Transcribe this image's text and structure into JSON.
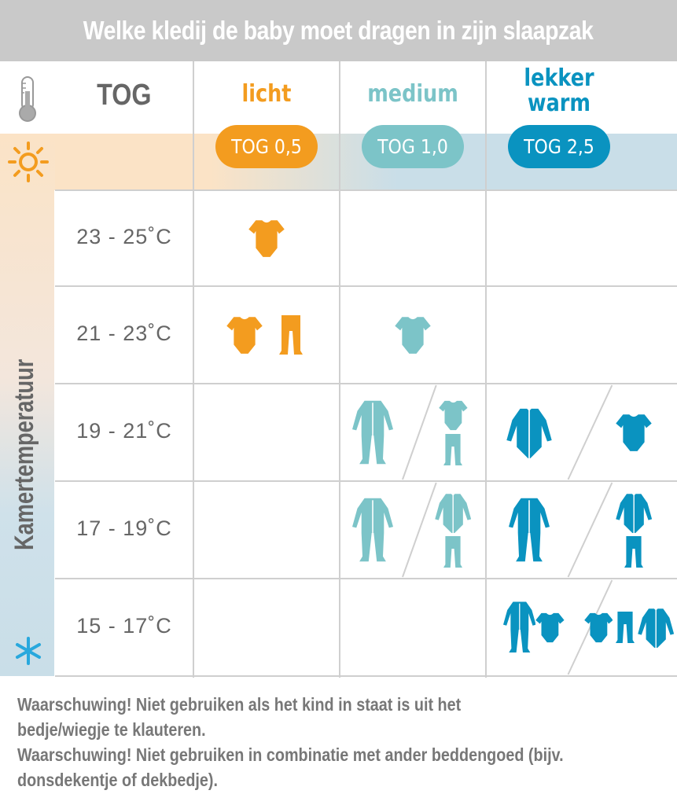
{
  "title": "Welke kledij de baby moet dragen in zijn slaapzak",
  "header": {
    "tog_label": "TOG",
    "thermometer_icon": "thermometer-icon",
    "sun_icon": "sun-icon",
    "snow_icon": "snowflake-icon"
  },
  "columns": [
    {
      "label": "licht",
      "pill": "TOG 0,5",
      "color": "#f39c1f"
    },
    {
      "label": "medium",
      "pill": "TOG 1,0",
      "color": "#7cc4c8"
    },
    {
      "label": "lekker warm",
      "pill": "TOG 2,5",
      "color": "#0a93c0"
    }
  ],
  "axis_label": "Kamertemperatuur",
  "rows": [
    {
      "temp": "23 - 25˚C",
      "cells": [
        [
          [
            "bodysuit"
          ]
        ],
        [],
        []
      ]
    },
    {
      "temp": "21 - 23˚C",
      "cells": [
        [
          [
            "bodysuit",
            "pants"
          ]
        ],
        [
          [
            "bodysuit"
          ]
        ],
        []
      ]
    },
    {
      "temp": "19 - 21˚C",
      "cells": [
        [],
        [
          [
            "sleepsuit"
          ],
          [
            "bodysuit",
            "pants"
          ]
        ],
        [
          [
            "longsleeve"
          ],
          [
            "bodysuit"
          ]
        ]
      ]
    },
    {
      "temp": "17 - 19˚C",
      "cells": [
        [],
        [
          [
            "sleepsuit"
          ],
          [
            "longsleeve",
            "pants"
          ]
        ],
        [
          [
            "sleepsuit"
          ],
          [
            "longsleeve",
            "pants"
          ]
        ]
      ]
    },
    {
      "temp": "15 - 17˚C",
      "cells": [
        [],
        [],
        [
          [
            "sleepsuit",
            "bodysuit"
          ],
          [
            "bodysuit",
            "pants",
            "longsleeve"
          ]
        ]
      ]
    }
  ],
  "footer": [
    "Waarschuwing! Niet gebruiken als het kind in staat is uit het",
    "bedje/wiegje te klauteren.",
    "Waarschuwing! Niet gebruiken in combinatie met ander beddengoed (bijv.",
    "donsdekentje of dekbedje)."
  ]
}
